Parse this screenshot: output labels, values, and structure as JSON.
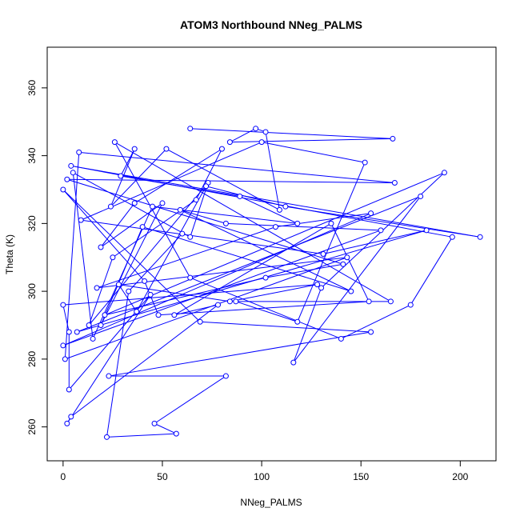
{
  "chart_data": {
    "type": "line",
    "title": "ATOM3 Northbound NNeg_PALMS",
    "xlabel": "NNeg_PALMS",
    "ylabel": "Theta (K)",
    "xlim": [
      -8,
      218
    ],
    "ylim": [
      250,
      372
    ],
    "xticks": [
      0,
      50,
      100,
      150,
      200
    ],
    "yticks": [
      260,
      280,
      300,
      320,
      340,
      360
    ],
    "grid": false,
    "markers": "open-circle",
    "line_color": "#0000ff",
    "series": [
      {
        "points": [
          [
            64,
            348
          ],
          [
            166,
            345
          ],
          [
            84,
            344
          ],
          [
            97,
            348
          ],
          [
            102,
            347
          ],
          [
            109,
            324
          ],
          [
            52,
            342
          ],
          [
            24,
            325
          ],
          [
            36,
            342
          ],
          [
            29,
            334
          ],
          [
            89,
            328
          ],
          [
            118,
            320
          ],
          [
            45,
            325
          ],
          [
            15,
            286
          ],
          [
            5,
            335
          ],
          [
            64,
            316
          ],
          [
            73,
            332
          ],
          [
            13,
            290
          ],
          [
            25,
            310
          ],
          [
            67,
            327
          ],
          [
            80,
            342
          ],
          [
            36,
            326
          ],
          [
            19,
            313
          ],
          [
            50,
            326
          ],
          [
            19,
            290
          ],
          [
            40,
            319
          ],
          [
            145,
            300
          ],
          [
            59,
            324
          ],
          [
            82,
            320
          ],
          [
            160,
            318
          ],
          [
            0,
            284
          ],
          [
            155,
            323
          ],
          [
            107,
            319
          ],
          [
            17,
            301
          ],
          [
            143,
            310
          ],
          [
            1,
            280
          ],
          [
            8,
            341
          ],
          [
            167,
            332
          ],
          [
            2,
            333
          ],
          [
            141,
            308
          ],
          [
            102,
            304
          ],
          [
            21,
            293
          ],
          [
            192,
            335
          ],
          [
            130,
            301
          ],
          [
            116,
            279
          ],
          [
            180,
            328
          ],
          [
            7,
            288
          ],
          [
            183,
            318
          ],
          [
            131,
            311
          ],
          [
            9,
            321
          ],
          [
            100,
            344
          ],
          [
            152,
            338
          ],
          [
            118,
            291
          ],
          [
            87,
            297
          ],
          [
            165,
            297
          ],
          [
            26,
            344
          ],
          [
            64,
            304
          ],
          [
            140,
            286
          ],
          [
            175,
            296
          ],
          [
            196,
            316
          ],
          [
            4,
            337
          ],
          [
            210,
            316
          ],
          [
            112,
            325
          ],
          [
            72,
            331
          ],
          [
            37,
            294
          ],
          [
            28,
            302
          ],
          [
            84,
            297
          ],
          [
            128,
            302
          ],
          [
            0,
            296
          ],
          [
            3,
            288
          ],
          [
            3,
            271
          ],
          [
            44,
            299
          ],
          [
            2,
            261
          ],
          [
            4,
            263
          ],
          [
            78,
            296
          ],
          [
            56,
            293
          ],
          [
            135,
            320
          ],
          [
            154,
            297
          ],
          [
            48,
            293
          ],
          [
            41,
            303
          ],
          [
            0,
            330
          ],
          [
            69,
            291
          ],
          [
            155,
            288
          ],
          [
            23,
            275
          ],
          [
            82,
            275
          ],
          [
            46,
            261
          ],
          [
            57,
            258
          ],
          [
            22,
            257
          ],
          [
            33,
            300
          ],
          [
            60,
            317
          ]
        ]
      }
    ]
  }
}
